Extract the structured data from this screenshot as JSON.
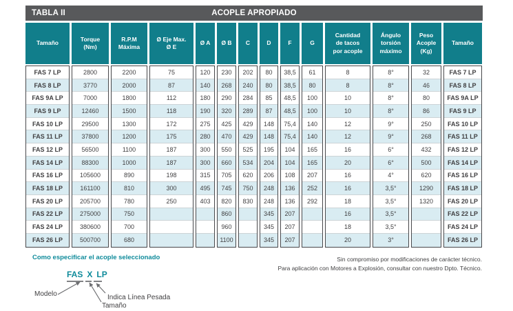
{
  "title_bar": {
    "left": "TABLA II",
    "center": "ACOPLE APROPIADO"
  },
  "table": {
    "headers": [
      "Tamaño",
      "Torque\n(Nm)",
      "R.P.M\nMáxima",
      "Ø Eje Max.\nØ E",
      "Ø A",
      "Ø B",
      "C",
      "D",
      "F",
      "G",
      "Cantidad\nde tacos\npor acople",
      "Ángulo\ntorsión\nmáximo",
      "Peso\nAcople\n(Kg)",
      "Tamaño"
    ],
    "rows": [
      [
        "FAS 7 LP",
        "2800",
        "2200",
        "75",
        "120",
        "230",
        "202",
        "80",
        "38,5",
        "61",
        "8",
        "8°",
        "32",
        "FAS 7 LP"
      ],
      [
        "FAS 8 LP",
        "3770",
        "2000",
        "87",
        "140",
        "268",
        "240",
        "80",
        "38,5",
        "80",
        "8",
        "8°",
        "46",
        "FAS 8 LP"
      ],
      [
        "FAS 9A LP",
        "7000",
        "1800",
        "112",
        "180",
        "290",
        "284",
        "85",
        "48,5",
        "100",
        "10",
        "8°",
        "80",
        "FAS 9A LP"
      ],
      [
        "FAS 9 LP",
        "12460",
        "1500",
        "118",
        "190",
        "320",
        "289",
        "87",
        "48,5",
        "100",
        "10",
        "8°",
        "86",
        "FAS 9 LP"
      ],
      [
        "FAS 10 LP",
        "29500",
        "1300",
        "172",
        "275",
        "425",
        "429",
        "148",
        "75,4",
        "140",
        "12",
        "9°",
        "250",
        "FAS 10 LP"
      ],
      [
        "FAS 11 LP",
        "37800",
        "1200",
        "175",
        "280",
        "470",
        "429",
        "148",
        "75,4",
        "140",
        "12",
        "9°",
        "268",
        "FAS 11 LP"
      ],
      [
        "FAS 12 LP",
        "56500",
        "1100",
        "187",
        "300",
        "550",
        "525",
        "195",
        "104",
        "165",
        "16",
        "6°",
        "432",
        "FAS 12 LP"
      ],
      [
        "FAS 14 LP",
        "88300",
        "1000",
        "187",
        "300",
        "660",
        "534",
        "204",
        "104",
        "165",
        "20",
        "6°",
        "500",
        "FAS 14 LP"
      ],
      [
        "FAS 16 LP",
        "105600",
        "890",
        "198",
        "315",
        "705",
        "620",
        "206",
        "108",
        "207",
        "16",
        "4°",
        "620",
        "FAS 16 LP"
      ],
      [
        "FAS 18 LP",
        "161100",
        "810",
        "300",
        "495",
        "745",
        "750",
        "248",
        "136",
        "252",
        "16",
        "3,5°",
        "1290",
        "FAS 18 LP"
      ],
      [
        "FAS 20 LP",
        "205700",
        "780",
        "250",
        "403",
        "820",
        "830",
        "248",
        "136",
        "292",
        "18",
        "3,5°",
        "1320",
        "FAS 20 LP"
      ],
      [
        "FAS 22 LP",
        "275000",
        "750",
        "",
        "",
        "860",
        "",
        "345",
        "207",
        "",
        "16",
        "3,5°",
        "",
        "FAS 22 LP"
      ],
      [
        "FAS 24 LP",
        "380600",
        "700",
        "",
        "",
        "960",
        "",
        "345",
        "207",
        "",
        "18",
        "3,5°",
        "",
        "FAS 24 LP"
      ],
      [
        "FAS 26 LP",
        "500700",
        "680",
        "",
        "",
        "1100",
        "",
        "345",
        "207",
        "",
        "20",
        "3°",
        "",
        "FAS 26 LP"
      ]
    ]
  },
  "footer": {
    "how_to_title": "Como especificar el acople seleccionado",
    "code": {
      "model": "FAS",
      "size": "X",
      "line": "LP"
    },
    "labels": {
      "modelo": "Modelo",
      "indica": "Indica Línea Pesada",
      "tamano": "Tamaño"
    },
    "notes": [
      "Sin compromiso por modificaciones de carácter técnico.",
      "Para aplicación con Motores a Explosión, consultar con nuestro Dpto. Técnico."
    ]
  },
  "colors": {
    "bar": "#58595b",
    "teal": "#117e8b",
    "tealtext": "#0f8b9b",
    "stripe": "#d9ecf2",
    "border": "#47474a",
    "text": "#414042"
  }
}
